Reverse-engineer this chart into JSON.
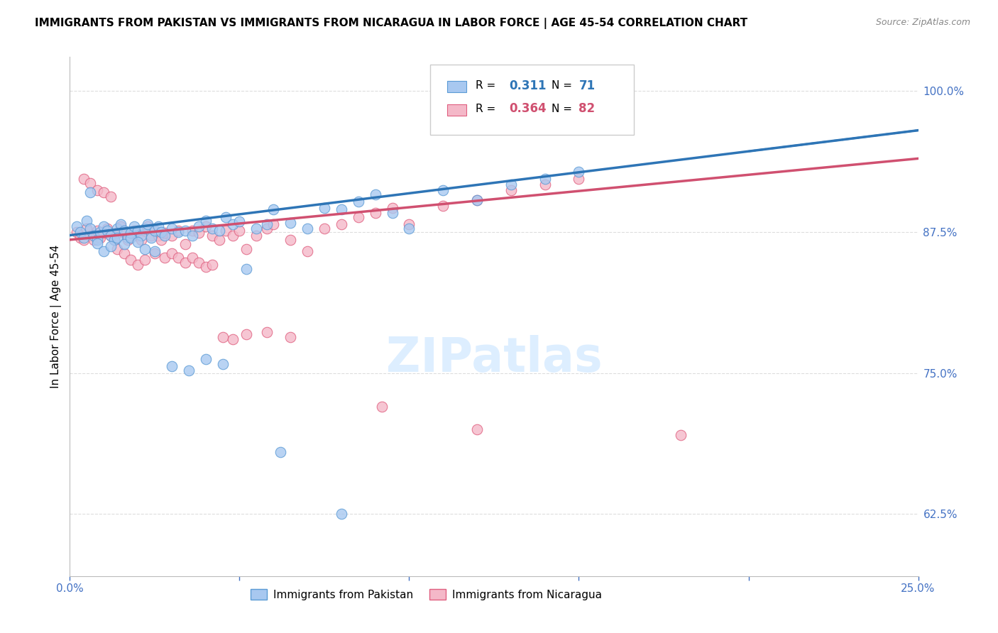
{
  "title": "IMMIGRANTS FROM PAKISTAN VS IMMIGRANTS FROM NICARAGUA IN LABOR FORCE | AGE 45-54 CORRELATION CHART",
  "source": "Source: ZipAtlas.com",
  "ylabel": "In Labor Force | Age 45-54",
  "xlim": [
    0.0,
    0.25
  ],
  "ylim": [
    0.57,
    1.03
  ],
  "pakistan_color": "#a8c8f0",
  "pakistan_edge_color": "#5b9bd5",
  "nicaragua_color": "#f4b8c8",
  "nicaragua_edge_color": "#e06080",
  "pakistan_R": 0.311,
  "pakistan_N": 71,
  "nicaragua_R": 0.364,
  "nicaragua_N": 82,
  "pakistan_line_color": "#2e75b6",
  "nicaragua_line_color": "#d05070",
  "watermark_color": "#ddeeff",
  "right_axis_color": "#4472c4",
  "grid_color": "#dddddd",
  "pakistan_x": [
    0.002,
    0.003,
    0.004,
    0.005,
    0.006,
    0.007,
    0.008,
    0.009,
    0.01,
    0.011,
    0.012,
    0.013,
    0.014,
    0.015,
    0.016,
    0.017,
    0.018,
    0.019,
    0.02,
    0.021,
    0.022,
    0.023,
    0.024,
    0.025,
    0.026,
    0.027,
    0.028,
    0.03,
    0.032,
    0.034,
    0.036,
    0.038,
    0.04,
    0.042,
    0.044,
    0.046,
    0.048,
    0.05,
    0.052,
    0.055,
    0.058,
    0.06,
    0.065,
    0.07,
    0.075,
    0.08,
    0.085,
    0.09,
    0.095,
    0.1,
    0.11,
    0.12,
    0.13,
    0.14,
    0.15,
    0.006,
    0.008,
    0.01,
    0.012,
    0.014,
    0.016,
    0.018,
    0.02,
    0.022,
    0.025,
    0.03,
    0.035,
    0.04,
    0.045,
    0.062,
    0.08
  ],
  "pakistan_y": [
    0.88,
    0.875,
    0.87,
    0.885,
    0.878,
    0.872,
    0.868,
    0.875,
    0.88,
    0.876,
    0.872,
    0.868,
    0.878,
    0.882,
    0.876,
    0.87,
    0.874,
    0.88,
    0.876,
    0.872,
    0.878,
    0.882,
    0.87,
    0.876,
    0.88,
    0.875,
    0.872,
    0.878,
    0.875,
    0.876,
    0.872,
    0.88,
    0.885,
    0.878,
    0.876,
    0.888,
    0.882,
    0.884,
    0.842,
    0.878,
    0.882,
    0.895,
    0.883,
    0.878,
    0.896,
    0.895,
    0.902,
    0.908,
    0.892,
    0.878,
    0.912,
    0.903,
    0.917,
    0.922,
    0.928,
    0.91,
    0.865,
    0.858,
    0.862,
    0.87,
    0.864,
    0.87,
    0.866,
    0.86,
    0.858,
    0.756,
    0.752,
    0.762,
    0.758,
    0.68,
    0.625
  ],
  "nicaragua_x": [
    0.002,
    0.003,
    0.004,
    0.005,
    0.006,
    0.007,
    0.008,
    0.009,
    0.01,
    0.011,
    0.012,
    0.013,
    0.014,
    0.015,
    0.016,
    0.017,
    0.018,
    0.019,
    0.02,
    0.021,
    0.022,
    0.023,
    0.024,
    0.025,
    0.026,
    0.027,
    0.028,
    0.03,
    0.032,
    0.034,
    0.036,
    0.038,
    0.04,
    0.042,
    0.044,
    0.046,
    0.048,
    0.05,
    0.052,
    0.055,
    0.058,
    0.06,
    0.065,
    0.07,
    0.075,
    0.08,
    0.085,
    0.09,
    0.095,
    0.1,
    0.11,
    0.12,
    0.13,
    0.14,
    0.15,
    0.004,
    0.006,
    0.008,
    0.01,
    0.012,
    0.014,
    0.016,
    0.018,
    0.02,
    0.022,
    0.025,
    0.028,
    0.03,
    0.032,
    0.034,
    0.036,
    0.038,
    0.04,
    0.042,
    0.045,
    0.048,
    0.052,
    0.058,
    0.065,
    0.12,
    0.18,
    0.092
  ],
  "nicaragua_y": [
    0.875,
    0.87,
    0.868,
    0.878,
    0.872,
    0.868,
    0.876,
    0.87,
    0.874,
    0.878,
    0.872,
    0.868,
    0.874,
    0.88,
    0.874,
    0.868,
    0.872,
    0.876,
    0.872,
    0.868,
    0.876,
    0.88,
    0.872,
    0.876,
    0.872,
    0.868,
    0.874,
    0.872,
    0.876,
    0.864,
    0.876,
    0.874,
    0.88,
    0.872,
    0.868,
    0.876,
    0.872,
    0.876,
    0.86,
    0.872,
    0.878,
    0.882,
    0.868,
    0.858,
    0.878,
    0.882,
    0.888,
    0.892,
    0.896,
    0.882,
    0.898,
    0.903,
    0.912,
    0.917,
    0.922,
    0.922,
    0.918,
    0.912,
    0.91,
    0.906,
    0.86,
    0.856,
    0.85,
    0.846,
    0.85,
    0.856,
    0.852,
    0.856,
    0.852,
    0.848,
    0.852,
    0.848,
    0.844,
    0.846,
    0.782,
    0.78,
    0.784,
    0.786,
    0.782,
    0.7,
    0.695,
    0.72
  ]
}
